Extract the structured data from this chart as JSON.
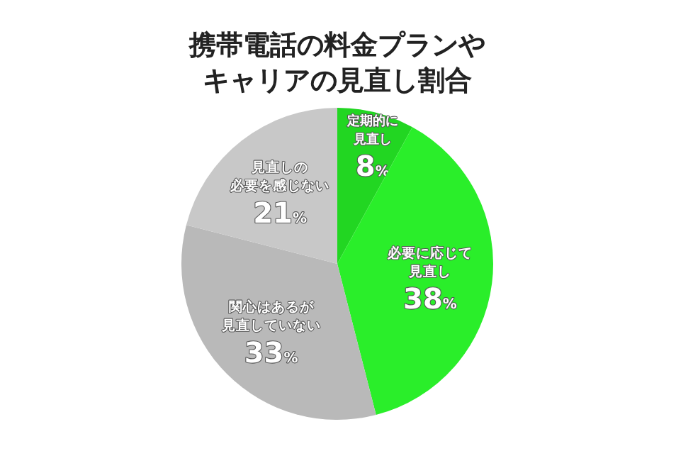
{
  "chart_data": {
    "type": "pie",
    "title": "携帯電話の料金プランやキャリアの見直し割合",
    "categories": [
      "定期的に見直し",
      "必要に応じて見直し",
      "関心はあるが見直していない",
      "見直しの必要を感じない"
    ],
    "values": [
      8,
      38,
      33,
      21
    ],
    "value_labels": [
      "8%",
      "38%",
      "33%",
      "21%"
    ],
    "colors": [
      "#22d622",
      "#2aee2a",
      "#b9b9b9",
      "#c8c8c8"
    ]
  }
}
